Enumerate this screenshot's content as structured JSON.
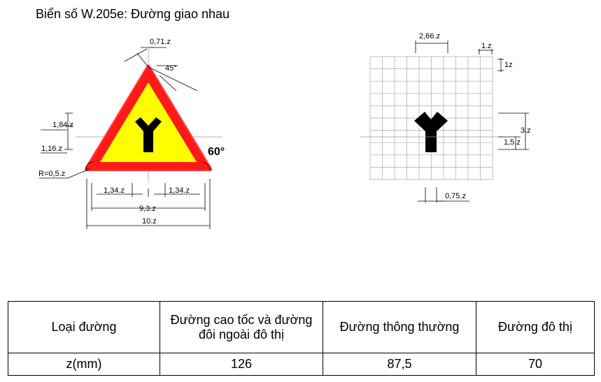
{
  "title": "Biển số W.205e: Đường giao nhau",
  "labels": {
    "top_width": "0,71.z",
    "angle_top": "45°",
    "angle_corner": "60°",
    "h_upper": "1,84.z",
    "h_lower": "1,16.z",
    "radius": "R=0,5.z",
    "half_left": "1,34.z",
    "half_right": "1,34.z",
    "inner_width": "9,3.z",
    "outer_width": "10.z",
    "grid_top": "2,66.z",
    "grid_cell_w": "1.z",
    "grid_cell_h": "1z",
    "grid_h3": "3.z",
    "grid_h15": "1,5.z",
    "grid_stem": "0,75.z"
  },
  "colors": {
    "border": "#ff1a1a",
    "fill": "#ffff00",
    "symbol": "#000000"
  },
  "table": {
    "header": [
      "Loại đường",
      "Đường cao tốc và đường đôi ngoài đô thị",
      "Đường thông thường",
      "Đường đô thị"
    ],
    "row": [
      "z(mm)",
      "126",
      "87,5",
      "70"
    ]
  }
}
